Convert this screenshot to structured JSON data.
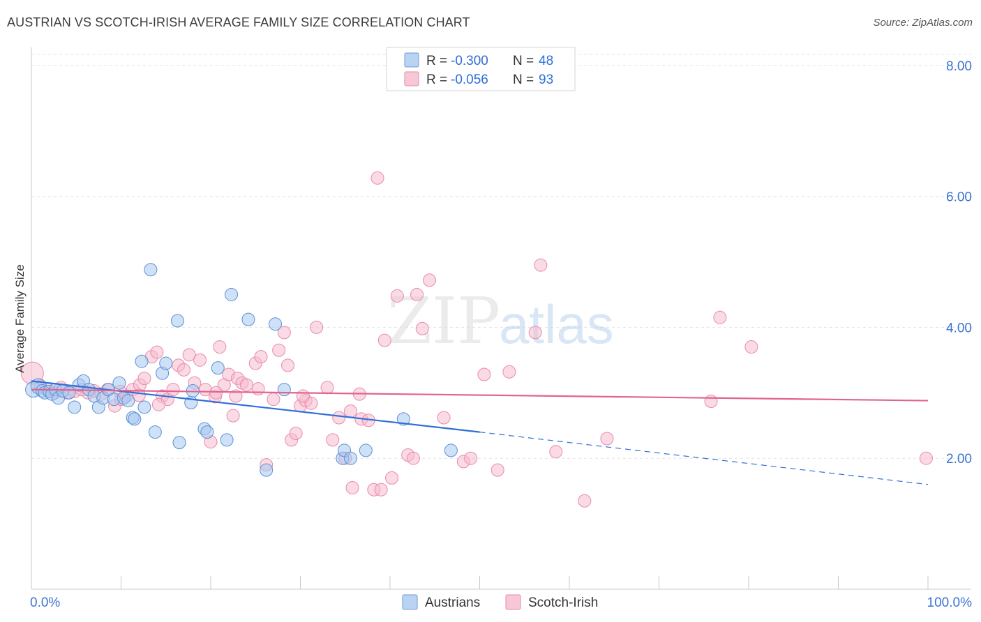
{
  "chart_data": {
    "type": "scatter",
    "title": "AUSTRIAN VS SCOTCH-IRISH AVERAGE FAMILY SIZE CORRELATION CHART",
    "source": "Source: ZipAtlas.com",
    "xlabel": "",
    "ylabel": "Average Family Size",
    "x_tick_labels": [
      "0.0%",
      "100.0%"
    ],
    "y_tick_labels": [
      "2.00",
      "4.00",
      "6.00",
      "8.00"
    ],
    "y_ticks": [
      2,
      4,
      6,
      8
    ],
    "xlim": [
      0,
      100
    ],
    "ylim": [
      0,
      8.2
    ],
    "grid": true,
    "watermark": {
      "zip": "ZIP",
      "atlas": "atlas"
    },
    "legend_position": "top-center",
    "colors": {
      "austrians_fill": "#a8c8f0",
      "austrians_stroke": "#5b8fd6",
      "austrians_line": "#2f6fd8",
      "scotch_fill": "#f5bccd",
      "scotch_stroke": "#e98aa8",
      "scotch_line": "#e2638f",
      "value_text": "#2f6fd8",
      "axis_tick_text": "#3b74d0"
    },
    "stats": [
      {
        "r_label": "R =",
        "r_value": "-0.300",
        "n_label": "N =",
        "n_value": "48"
      },
      {
        "r_label": "R =",
        "r_value": "-0.056",
        "n_label": "N =",
        "n_value": "93"
      }
    ],
    "series": [
      {
        "name": "Austrians",
        "trend": {
          "x0": 0,
          "y0": 3.18,
          "x1": 50,
          "y1": 2.4,
          "dash_x1": 100,
          "dash_y1": 1.6
        },
        "points": [
          [
            0.2,
            3.05
          ],
          [
            0.8,
            3.1
          ],
          [
            1.2,
            3.03
          ],
          [
            1.5,
            3.0
          ],
          [
            2.0,
            3.02
          ],
          [
            2.3,
            2.98
          ],
          [
            2.7,
            3.05
          ],
          [
            3.0,
            2.92
          ],
          [
            3.5,
            3.03
          ],
          [
            4.2,
            3.0
          ],
          [
            4.8,
            2.78
          ],
          [
            5.3,
            3.12
          ],
          [
            5.8,
            3.18
          ],
          [
            6.4,
            3.05
          ],
          [
            7.0,
            2.95
          ],
          [
            7.5,
            2.78
          ],
          [
            8.0,
            2.92
          ],
          [
            8.6,
            3.05
          ],
          [
            9.2,
            2.9
          ],
          [
            9.8,
            3.15
          ],
          [
            10.3,
            2.92
          ],
          [
            10.8,
            2.88
          ],
          [
            11.3,
            2.62
          ],
          [
            11.5,
            2.6
          ],
          [
            12.6,
            2.78
          ],
          [
            12.3,
            3.48
          ],
          [
            13.3,
            4.88
          ],
          [
            13.8,
            2.4
          ],
          [
            14.6,
            3.3
          ],
          [
            15.0,
            3.45
          ],
          [
            16.3,
            4.1
          ],
          [
            16.5,
            2.24
          ],
          [
            17.8,
            2.85
          ],
          [
            18.0,
            3.03
          ],
          [
            19.3,
            2.45
          ],
          [
            19.6,
            2.4
          ],
          [
            20.8,
            3.38
          ],
          [
            21.8,
            2.28
          ],
          [
            22.3,
            4.5
          ],
          [
            24.2,
            4.12
          ],
          [
            26.2,
            1.82
          ],
          [
            27.2,
            4.05
          ],
          [
            28.2,
            3.05
          ],
          [
            34.7,
            2.0
          ],
          [
            34.9,
            2.12
          ],
          [
            35.6,
            2.0
          ],
          [
            37.3,
            2.12
          ],
          [
            46.8,
            2.12
          ],
          [
            41.5,
            2.6
          ]
        ]
      },
      {
        "name": "Scotch-Irish",
        "trend": {
          "x0": 0,
          "y0": 3.05,
          "x1": 100,
          "y1": 2.88
        },
        "points": [
          [
            0.1,
            3.3
          ],
          [
            1.0,
            3.1
          ],
          [
            1.8,
            3.05
          ],
          [
            2.6,
            3.0
          ],
          [
            3.3,
            3.08
          ],
          [
            4.0,
            3.0
          ],
          [
            4.8,
            3.02
          ],
          [
            5.6,
            3.05
          ],
          [
            6.3,
            3.0
          ],
          [
            7.0,
            3.03
          ],
          [
            7.8,
            2.98
          ],
          [
            8.5,
            3.05
          ],
          [
            9.3,
            2.8
          ],
          [
            10.0,
            2.9
          ],
          [
            10.6,
            2.95
          ],
          [
            11.3,
            3.05
          ],
          [
            12.1,
            3.12
          ],
          [
            12.6,
            3.22
          ],
          [
            13.4,
            3.55
          ],
          [
            14.0,
            3.62
          ],
          [
            14.6,
            2.95
          ],
          [
            15.2,
            2.9
          ],
          [
            15.8,
            3.05
          ],
          [
            16.4,
            3.42
          ],
          [
            17.0,
            3.35
          ],
          [
            17.6,
            3.58
          ],
          [
            18.2,
            3.15
          ],
          [
            18.8,
            3.5
          ],
          [
            19.4,
            3.05
          ],
          [
            20.0,
            2.25
          ],
          [
            20.5,
            2.94
          ],
          [
            21.0,
            3.7
          ],
          [
            21.5,
            3.12
          ],
          [
            22.0,
            3.28
          ],
          [
            22.5,
            2.65
          ],
          [
            23.0,
            3.22
          ],
          [
            23.5,
            3.15
          ],
          [
            24.0,
            3.12
          ],
          [
            25.0,
            3.45
          ],
          [
            25.6,
            3.55
          ],
          [
            26.2,
            1.9
          ],
          [
            27.0,
            2.9
          ],
          [
            27.6,
            3.65
          ],
          [
            28.2,
            3.92
          ],
          [
            28.6,
            3.42
          ],
          [
            29.0,
            2.28
          ],
          [
            29.5,
            2.38
          ],
          [
            30.0,
            2.8
          ],
          [
            30.6,
            2.88
          ],
          [
            31.2,
            2.84
          ],
          [
            31.8,
            4.0
          ],
          [
            33.0,
            3.08
          ],
          [
            33.6,
            2.28
          ],
          [
            34.3,
            2.62
          ],
          [
            35.0,
            2.0
          ],
          [
            35.6,
            2.72
          ],
          [
            35.8,
            1.55
          ],
          [
            36.6,
            2.98
          ],
          [
            36.8,
            2.6
          ],
          [
            37.6,
            2.58
          ],
          [
            38.2,
            1.52
          ],
          [
            39.0,
            1.52
          ],
          [
            38.6,
            6.28
          ],
          [
            39.4,
            3.8
          ],
          [
            40.2,
            1.7
          ],
          [
            40.8,
            4.48
          ],
          [
            42.0,
            2.05
          ],
          [
            42.6,
            2.0
          ],
          [
            43.0,
            4.5
          ],
          [
            43.6,
            3.98
          ],
          [
            44.4,
            4.72
          ],
          [
            46.0,
            2.62
          ],
          [
            48.2,
            1.95
          ],
          [
            49.0,
            2.0
          ],
          [
            50.5,
            3.28
          ],
          [
            52.0,
            1.82
          ],
          [
            53.3,
            3.32
          ],
          [
            56.2,
            3.92
          ],
          [
            56.8,
            4.95
          ],
          [
            58.5,
            2.1
          ],
          [
            61.7,
            1.35
          ],
          [
            64.2,
            2.3
          ],
          [
            75.8,
            2.87
          ],
          [
            76.8,
            4.15
          ],
          [
            80.3,
            3.7
          ],
          [
            99.8,
            2.0
          ],
          [
            20.6,
            3.0
          ],
          [
            14.2,
            2.82
          ],
          [
            9.9,
            3.02
          ],
          [
            22.8,
            2.95
          ],
          [
            12.0,
            2.96
          ],
          [
            25.3,
            3.06
          ],
          [
            30.3,
            2.95
          ]
        ]
      }
    ]
  }
}
